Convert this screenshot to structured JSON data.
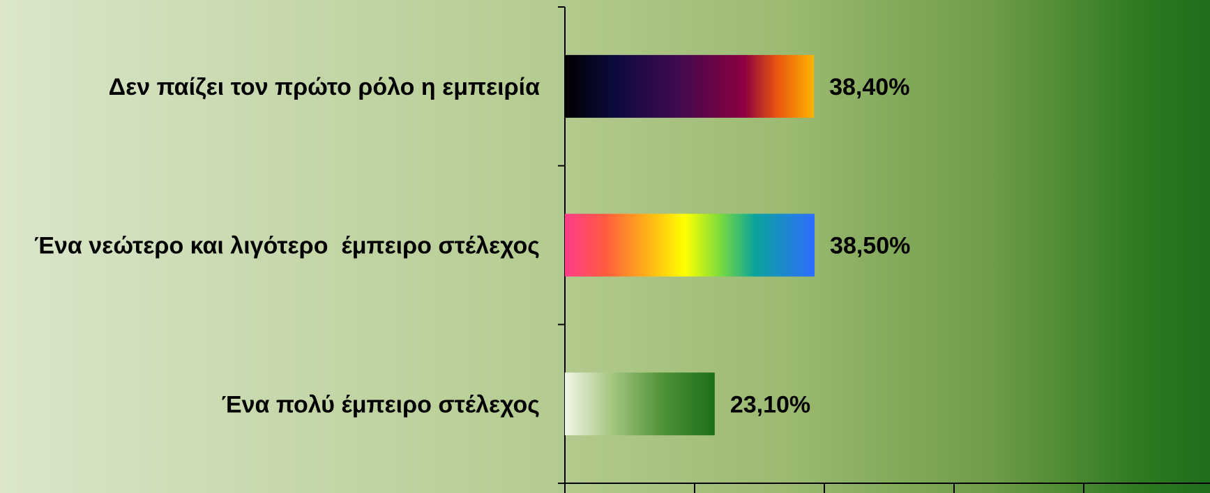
{
  "chart_data": {
    "type": "bar",
    "orientation": "horizontal",
    "categories": [
      "Δεν παίζει τον πρώτο ρόλο η εμπειρία",
      "Ένα νεώτερο και λιγότερο  έμπειρο στέλεχος",
      "Ένα πολύ έμπειρο στέλεχος"
    ],
    "values": [
      38.4,
      38.5,
      23.1
    ],
    "value_labels": [
      "38,40%",
      "38,50%",
      "23,10%"
    ],
    "xlim": [
      0,
      100
    ],
    "x_ticks": [
      0,
      20,
      40,
      60,
      80,
      100
    ],
    "grid": false,
    "legend": "none",
    "bar_styles": [
      "dark-sunset-gradient",
      "rainbow-gradient",
      "green-fade-gradient"
    ],
    "colors": {
      "axis": "#000000",
      "text": "#000000"
    }
  }
}
